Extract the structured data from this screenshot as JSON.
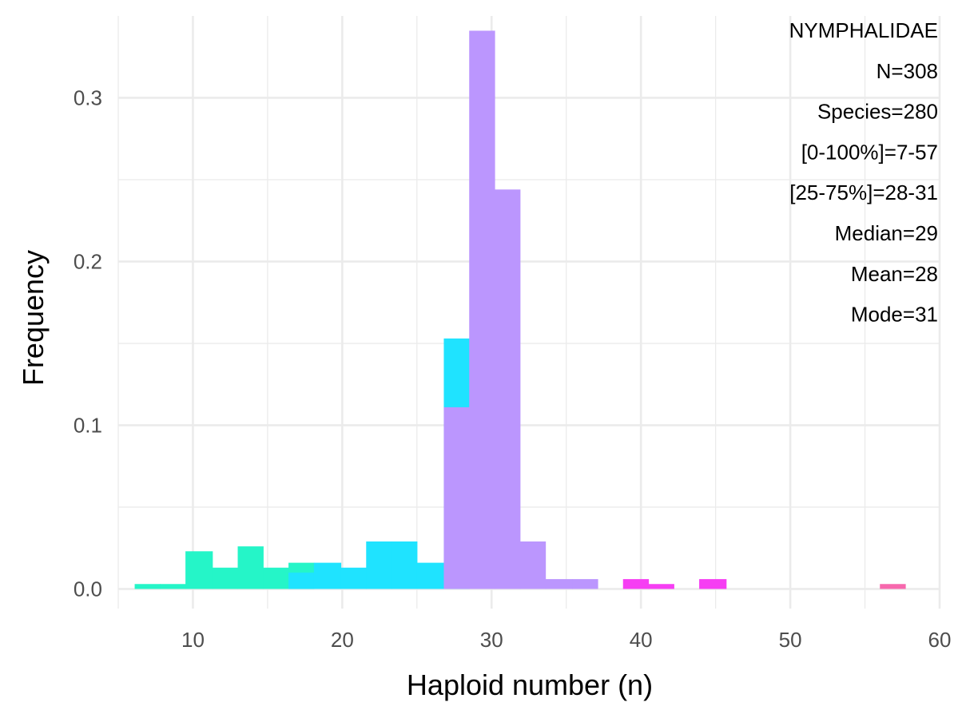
{
  "chart_data": {
    "type": "bar",
    "subtype": "histogram",
    "xlabel": "Haploid number (n)",
    "ylabel": "Frequency",
    "xlim": [
      5,
      60
    ],
    "ylim": [
      -0.012,
      0.35
    ],
    "x_ticks": [
      10,
      20,
      30,
      40,
      50,
      60
    ],
    "x_minor_ticks": [
      5,
      15,
      25,
      35,
      45,
      55
    ],
    "y_ticks": [
      0.0,
      0.1,
      0.2,
      0.3
    ],
    "y_tick_labels": [
      "0.0",
      "0.1",
      "0.2",
      "0.3"
    ],
    "y_minor_ticks": [
      0.05,
      0.15,
      0.25
    ],
    "grid": true,
    "bars": [
      {
        "x0": 6.1,
        "x1": 7.8,
        "value": 0.003,
        "color": "#25f5c8"
      },
      {
        "x0": 7.8,
        "x1": 9.5,
        "value": 0.003,
        "color": "#25f5c8"
      },
      {
        "x0": 9.5,
        "x1": 11.3,
        "value": 0.023,
        "color": "#25f5c8"
      },
      {
        "x0": 11.3,
        "x1": 13.0,
        "value": 0.013,
        "color": "#25f5c8"
      },
      {
        "x0": 13.0,
        "x1": 14.7,
        "value": 0.026,
        "color": "#25f5c8"
      },
      {
        "x0": 14.7,
        "x1": 16.4,
        "value": 0.013,
        "color": "#25f5c8"
      },
      {
        "x0": 16.4,
        "x1": 18.1,
        "value": 0.016,
        "color": "#25f5c8",
        "stack": [
          {
            "value": 0.01,
            "color": "#1fe3ff"
          }
        ]
      },
      {
        "x0": 18.1,
        "x1": 19.9,
        "value": 0.016,
        "color": "#1fe3ff"
      },
      {
        "x0": 19.9,
        "x1": 21.6,
        "value": 0.013,
        "color": "#1fe3ff"
      },
      {
        "x0": 21.6,
        "x1": 23.3,
        "value": 0.029,
        "color": "#1fe3ff"
      },
      {
        "x0": 23.3,
        "x1": 25.0,
        "value": 0.029,
        "color": "#1fe3ff"
      },
      {
        "x0": 25.0,
        "x1": 26.8,
        "value": 0.016,
        "color": "#1fe3ff"
      },
      {
        "x0": 26.8,
        "x1": 28.5,
        "value": 0.153,
        "color": "#1fe3ff",
        "stack": [
          {
            "value": 0.111,
            "color": "#bb96fe"
          }
        ]
      },
      {
        "x0": 28.5,
        "x1": 30.2,
        "value": 0.341,
        "color": "#bb96fe"
      },
      {
        "x0": 30.2,
        "x1": 31.9,
        "value": 0.244,
        "color": "#bb96fe"
      },
      {
        "x0": 31.9,
        "x1": 33.6,
        "value": 0.029,
        "color": "#bb96fe"
      },
      {
        "x0": 33.6,
        "x1": 35.4,
        "value": 0.006,
        "color": "#bb96fe"
      },
      {
        "x0": 35.4,
        "x1": 37.1,
        "value": 0.006,
        "color": "#bb96fe"
      },
      {
        "x0": 38.8,
        "x1": 40.5,
        "value": 0.006,
        "color": "#f63ef3"
      },
      {
        "x0": 40.5,
        "x1": 42.2,
        "value": 0.003,
        "color": "#f63ef3"
      },
      {
        "x0": 43.9,
        "x1": 45.7,
        "value": 0.006,
        "color": "#f63ef3"
      },
      {
        "x0": 56.0,
        "x1": 57.7,
        "value": 0.003,
        "color": "#f768ad"
      }
    ],
    "annotations": [
      "NYMPHALIDAE",
      "N=308",
      "Species=280",
      "[0-100%]=7-57",
      "[25-75%]=28-31",
      "Median=29",
      "Mean=28",
      "Mode=31"
    ]
  }
}
